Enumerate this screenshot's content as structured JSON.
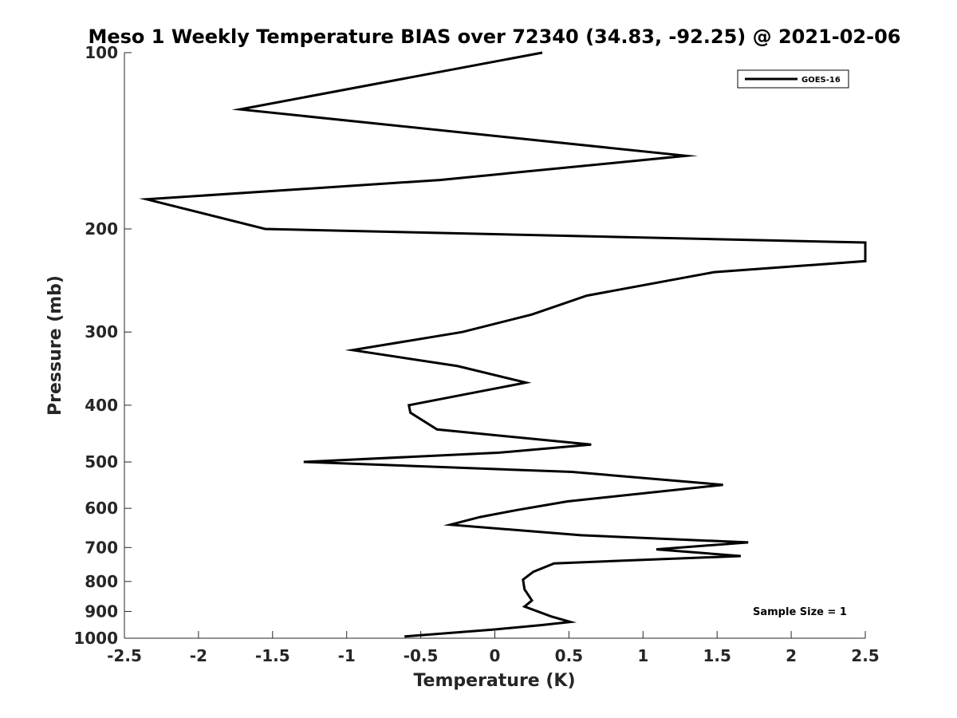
{
  "chart_data": {
    "type": "line",
    "title": "Meso 1 Weekly Temperature BIAS over 72340 (34.83, -92.25) @ 2021-02-06",
    "xlabel": "Temperature (K)",
    "ylabel": "Pressure (mb)",
    "xlim": [
      -2.5,
      2.5
    ],
    "ylim": [
      100,
      1000
    ],
    "y_scale": "log",
    "y_reversed": true,
    "grid": false,
    "legend_position": "top-right",
    "x_ticks": [
      -2.5,
      -2,
      -1.5,
      -1,
      -0.5,
      0,
      0.5,
      1,
      1.5,
      2,
      2.5
    ],
    "x_tick_labels": [
      "-2.5",
      "-2",
      "-1.5",
      "-1",
      "-0.5",
      "0",
      "0.5",
      "1",
      "1.5",
      "2",
      "2.5"
    ],
    "y_ticks": [
      100,
      200,
      300,
      400,
      500,
      600,
      700,
      800,
      900,
      1000
    ],
    "y_tick_labels": [
      "100",
      "200",
      "300",
      "400",
      "500",
      "600",
      "700",
      "800",
      "900",
      "1000"
    ],
    "annotation": "Sample Size = 1",
    "series": [
      {
        "name": "GOES-16",
        "color": "#000000",
        "points": [
          {
            "x": 0.32,
            "p": 100
          },
          {
            "x": -1.72,
            "p": 125
          },
          {
            "x": 1.29,
            "p": 150
          },
          {
            "x": -0.37,
            "p": 165
          },
          {
            "x": -2.35,
            "p": 178
          },
          {
            "x": -1.55,
            "p": 200
          },
          {
            "x": 2.5,
            "p": 211
          },
          {
            "x": 2.5,
            "p": 227
          },
          {
            "x": 1.48,
            "p": 237
          },
          {
            "x": 0.62,
            "p": 260
          },
          {
            "x": 0.25,
            "p": 280
          },
          {
            "x": -0.22,
            "p": 300
          },
          {
            "x": -0.96,
            "p": 322
          },
          {
            "x": -0.25,
            "p": 343
          },
          {
            "x": 0.21,
            "p": 366
          },
          {
            "x": -0.17,
            "p": 382
          },
          {
            "x": -0.58,
            "p": 400
          },
          {
            "x": -0.57,
            "p": 412
          },
          {
            "x": -0.39,
            "p": 440
          },
          {
            "x": 0.65,
            "p": 467
          },
          {
            "x": 0.03,
            "p": 482
          },
          {
            "x": -1.29,
            "p": 500
          },
          {
            "x": 0.52,
            "p": 520
          },
          {
            "x": 1.54,
            "p": 547
          },
          {
            "x": 0.49,
            "p": 584
          },
          {
            "x": 0.15,
            "p": 604
          },
          {
            "x": -0.1,
            "p": 621
          },
          {
            "x": -0.3,
            "p": 640
          },
          {
            "x": 0.58,
            "p": 667
          },
          {
            "x": 1.71,
            "p": 686
          },
          {
            "x": 1.09,
            "p": 705
          },
          {
            "x": 1.66,
            "p": 724
          },
          {
            "x": 0.4,
            "p": 745
          },
          {
            "x": 0.26,
            "p": 770
          },
          {
            "x": 0.19,
            "p": 794
          },
          {
            "x": 0.2,
            "p": 825
          },
          {
            "x": 0.25,
            "p": 862
          },
          {
            "x": 0.2,
            "p": 883
          },
          {
            "x": 0.38,
            "p": 918
          },
          {
            "x": 0.51,
            "p": 938
          },
          {
            "x": 0.31,
            "p": 950
          },
          {
            "x": 0.0,
            "p": 966
          },
          {
            "x": -0.61,
            "p": 993
          }
        ]
      }
    ]
  }
}
